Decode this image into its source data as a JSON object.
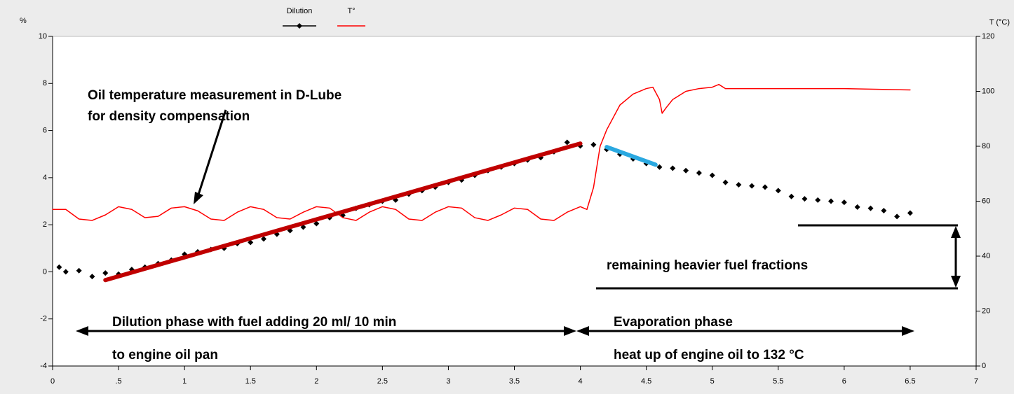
{
  "chart_data": {
    "type": "line",
    "y_label": "%",
    "y2_label": "T (°C)",
    "legend": "top",
    "xlim": [
      0,
      7
    ],
    "xticks": [
      0,
      {
        "value": 0.5,
        "label": ".5"
      },
      1,
      1.5,
      2,
      2.5,
      3,
      3.5,
      4,
      4.5,
      5,
      5.5,
      6,
      6.5,
      7
    ],
    "ylim": [
      -4,
      10
    ],
    "yticks": [
      -4,
      -2,
      0,
      2,
      4,
      6,
      8,
      10
    ],
    "y2lim": [
      0,
      120
    ],
    "y2ticks": [
      0,
      20,
      40,
      60,
      80,
      100,
      120
    ],
    "series": [
      {
        "name": "Dilution",
        "color": "#000000",
        "marker": "diamond",
        "x": [
          0.05,
          0.1,
          0.2,
          0.3,
          0.4,
          0.5,
          0.6,
          0.7,
          0.8,
          0.9,
          1.0,
          1.1,
          1.2,
          1.3,
          1.4,
          1.5,
          1.6,
          1.7,
          1.8,
          1.9,
          2.0,
          2.1,
          2.2,
          2.3,
          2.4,
          2.5,
          2.6,
          2.7,
          2.8,
          2.9,
          3.0,
          3.1,
          3.2,
          3.3,
          3.4,
          3.5,
          3.6,
          3.7,
          3.8,
          3.9,
          4.0,
          4.1,
          4.2,
          4.3,
          4.4,
          4.5,
          4.6,
          4.7,
          4.8,
          4.9,
          5.0,
          5.1,
          5.2,
          5.3,
          5.4,
          5.5,
          5.6,
          5.7,
          5.8,
          5.9,
          6.0,
          6.1,
          6.2,
          6.3,
          6.4,
          6.5
        ],
        "values": [
          0.2,
          0.0,
          0.05,
          -0.2,
          -0.05,
          -0.1,
          0.1,
          0.2,
          0.35,
          0.5,
          0.75,
          0.85,
          0.95,
          1.0,
          1.2,
          1.25,
          1.4,
          1.6,
          1.75,
          1.9,
          2.05,
          2.3,
          2.4,
          2.7,
          2.85,
          3.0,
          3.05,
          3.3,
          3.45,
          3.6,
          3.8,
          3.9,
          4.1,
          4.3,
          4.45,
          4.6,
          4.75,
          4.85,
          5.1,
          5.5,
          5.35,
          5.4,
          5.2,
          5.0,
          4.8,
          4.6,
          4.45,
          4.4,
          4.3,
          4.2,
          4.1,
          3.8,
          3.7,
          3.65,
          3.6,
          3.45,
          3.2,
          3.1,
          3.05,
          3.0,
          2.95,
          2.75,
          2.7,
          2.6,
          2.35,
          2.5
        ]
      },
      {
        "name": "T°",
        "color": "#ff0000",
        "axis": "y2",
        "x": [
          0,
          0.1,
          0.2,
          0.3,
          0.4,
          0.5,
          0.6,
          0.7,
          0.8,
          0.9,
          1.0,
          1.1,
          1.2,
          1.3,
          1.4,
          1.5,
          1.6,
          1.7,
          1.8,
          1.9,
          2.0,
          2.1,
          2.2,
          2.3,
          2.4,
          2.5,
          2.6,
          2.7,
          2.8,
          2.9,
          3.0,
          3.1,
          3.2,
          3.3,
          3.4,
          3.5,
          3.6,
          3.7,
          3.8,
          3.9,
          4.0,
          4.05,
          4.1,
          4.15,
          4.2,
          4.3,
          4.4,
          4.5,
          4.55,
          4.6,
          4.62,
          4.65,
          4.7,
          4.8,
          4.9,
          5.0,
          5.05,
          5.1,
          5.5,
          6.0,
          6.5
        ],
        "values": [
          57,
          57,
          53.5,
          53,
          55,
          58,
          57,
          54,
          54.5,
          57.5,
          58,
          56.5,
          53.5,
          53,
          56,
          58,
          57,
          54,
          53.5,
          56,
          58,
          57.5,
          54,
          53,
          56,
          58,
          57,
          53.5,
          53,
          56,
          58,
          57.5,
          54,
          53,
          55,
          57.5,
          57,
          53.5,
          53,
          56,
          58,
          57,
          65,
          80,
          86,
          95,
          99,
          101,
          101.5,
          97,
          92,
          94,
          97,
          100,
          101,
          101.5,
          102.5,
          101,
          101,
          101,
          100.5
        ]
      },
      {
        "color": "#c00000",
        "x": [
          0.4,
          4.0
        ],
        "values": [
          -0.35,
          5.45
        ]
      },
      {
        "color": "#2aa8e0",
        "x": [
          4.2,
          4.57
        ],
        "values": [
          5.3,
          4.55
        ]
      }
    ],
    "annotations": [
      "Oil temperature measurement in D-Lube",
      "for density compensation",
      "remaining heavier fuel fractions",
      "Dilution phase with fuel adding 20 ml/ 10 min",
      "to engine oil pan",
      "Evaporation phase",
      "heat up of engine oil to 132 °C"
    ]
  }
}
